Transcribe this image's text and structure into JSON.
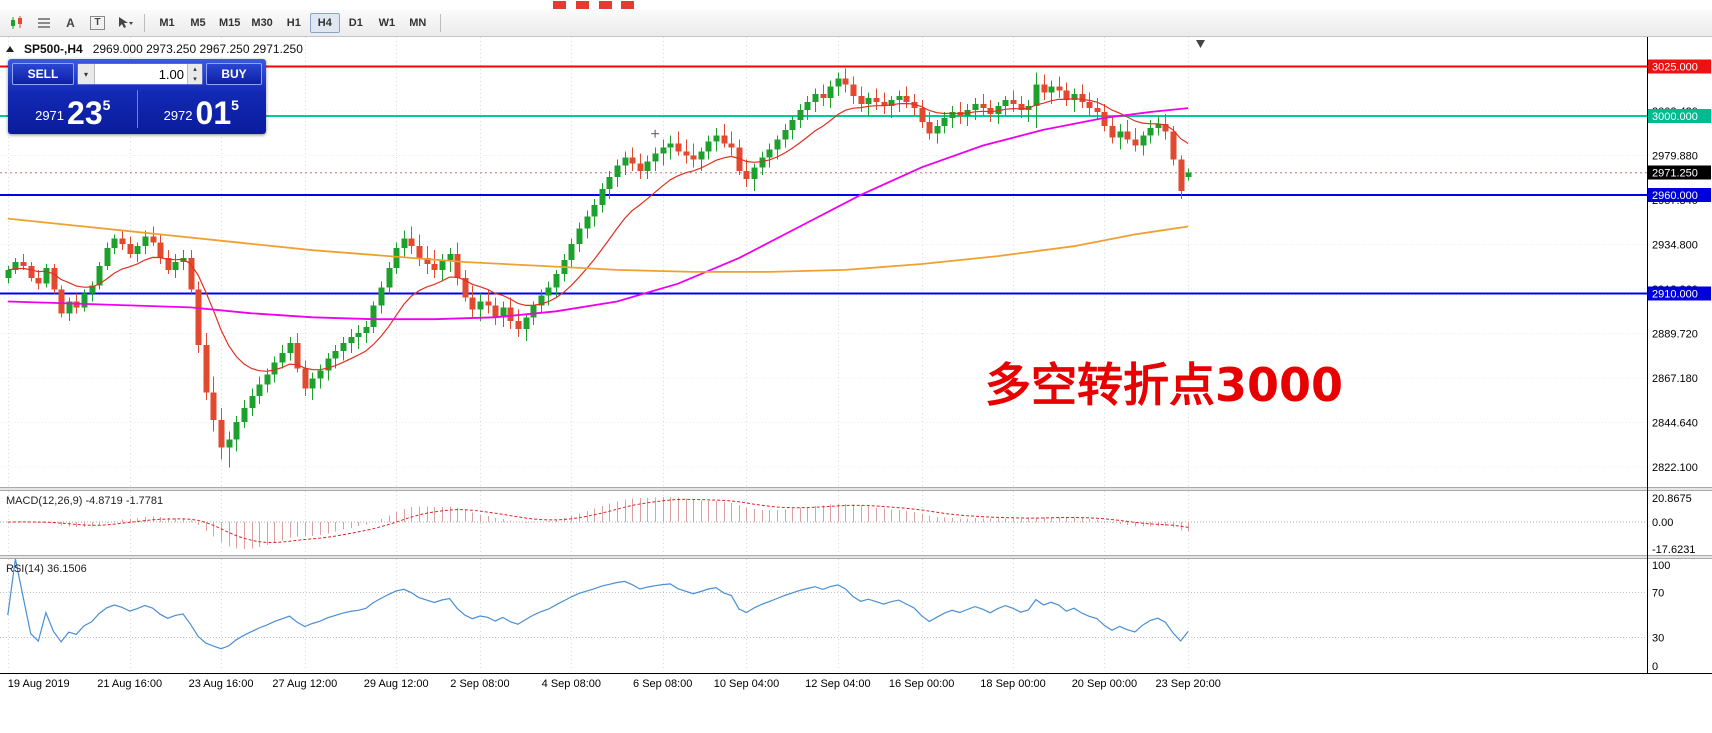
{
  "window": {
    "header_symbol": "SP500-,H4",
    "header_ohlc": "2969.000 2973.250 2967.250 2971.250"
  },
  "toolbar": {
    "icon_a": "A",
    "icon_t": "T",
    "timeframes": [
      {
        "label": "M1",
        "active": false
      },
      {
        "label": "M5",
        "active": false
      },
      {
        "label": "M15",
        "active": false
      },
      {
        "label": "M30",
        "active": false
      },
      {
        "label": "H1",
        "active": false
      },
      {
        "label": "H4",
        "active": true
      },
      {
        "label": "D1",
        "active": false
      },
      {
        "label": "W1",
        "active": false
      },
      {
        "label": "MN",
        "active": false
      }
    ]
  },
  "trade_panel": {
    "sell_label": "SELL",
    "buy_label": "BUY",
    "volume": "1.00",
    "bid_small": "2971",
    "bid_big": "23",
    "bid_sup": "5",
    "ask_small": "2972",
    "ask_big": "01",
    "ask_sup": "5"
  },
  "annotation": {
    "text": "多空转折点3000"
  },
  "chart_data": {
    "type": "candlestick",
    "symbol": "SP500-",
    "timeframe": "H4",
    "last_bar": {
      "open": 2969.0,
      "high": 2973.25,
      "low": 2967.25,
      "close": 2971.25
    },
    "y_axis": {
      "p_min": 2812,
      "p_max": 3040,
      "grid_start": 2822.1,
      "grid_step": 22.54
    },
    "hlines": [
      {
        "price": 3025.0,
        "color": "#ff0000",
        "label": "3025.000",
        "label_bg": "#ee1111"
      },
      {
        "price": 3000.0,
        "color": "#00cc99",
        "label": "3000.000",
        "label_bg": "#00bb90"
      },
      {
        "price": 2960.0,
        "color": "#0000ee",
        "label": "2960.000",
        "label_bg": "#0000dd"
      },
      {
        "price": 2910.0,
        "color": "#0000ee",
        "label": "2910.000",
        "label_bg": "#0000dd"
      }
    ],
    "current_price": {
      "price": 2971.25,
      "label": "2971.250"
    },
    "colors": {
      "up": "#1ca12c",
      "down": "#e2492f",
      "ma_fast": "#e03020",
      "ma_mid": "#ee00ee",
      "ma_slow": "#f0a030",
      "macd_hist": "#dca0a0",
      "macd_signal": "#dd2222",
      "rsi": "#4a8fd4"
    },
    "x_labels": [
      [
        0,
        "19 Aug 2019"
      ],
      [
        16,
        "21 Aug 16:00"
      ],
      [
        28,
        "23 Aug 16:00"
      ],
      [
        39,
        "27 Aug 12:00"
      ],
      [
        51,
        "29 Aug 12:00"
      ],
      [
        62,
        "2 Sep 08:00"
      ],
      [
        74,
        "4 Sep 08:00"
      ],
      [
        86,
        "6 Sep 08:00"
      ],
      [
        97,
        "10 Sep 04:00"
      ],
      [
        109,
        "12 Sep 04:00"
      ],
      [
        120,
        "16 Sep 00:00"
      ],
      [
        132,
        "18 Sep 00:00"
      ],
      [
        144,
        "20 Sep 00:00"
      ],
      [
        155,
        "23 Sep 20:00"
      ]
    ],
    "ma_fast_period": 13,
    "ma_mid_points": [
      [
        0,
        2906
      ],
      [
        8,
        2905
      ],
      [
        16,
        2904
      ],
      [
        24,
        2903
      ],
      [
        32,
        2900
      ],
      [
        40,
        2898
      ],
      [
        48,
        2897
      ],
      [
        56,
        2897
      ],
      [
        64,
        2898
      ],
      [
        72,
        2901
      ],
      [
        80,
        2906
      ],
      [
        88,
        2915
      ],
      [
        96,
        2928
      ],
      [
        104,
        2944
      ],
      [
        112,
        2960
      ],
      [
        120,
        2974
      ],
      [
        128,
        2985
      ],
      [
        136,
        2993
      ],
      [
        144,
        2999
      ],
      [
        150,
        3002
      ],
      [
        155,
        3004
      ]
    ],
    "ma_slow_points": [
      [
        0,
        2948
      ],
      [
        10,
        2944
      ],
      [
        20,
        2940
      ],
      [
        30,
        2936
      ],
      [
        40,
        2932
      ],
      [
        50,
        2929
      ],
      [
        60,
        2926
      ],
      [
        70,
        2924
      ],
      [
        80,
        2922
      ],
      [
        90,
        2921
      ],
      [
        100,
        2921
      ],
      [
        110,
        2922
      ],
      [
        120,
        2925
      ],
      [
        130,
        2929
      ],
      [
        140,
        2934
      ],
      [
        148,
        2940
      ],
      [
        155,
        2944
      ]
    ],
    "macd": {
      "label": "MACD(12,26,9)",
      "value": "-4.8719",
      "signal_value": "-1.7781",
      "axis_max": "20.8675",
      "axis_zero": "0.00",
      "axis_min": "-17.6231",
      "fast": 12,
      "slow": 26,
      "signal": 9
    },
    "rsi": {
      "label": "RSI(14)",
      "value": "36.1506",
      "period": 14,
      "levels": [
        70,
        30
      ],
      "axis_top": "100",
      "axis_bottom": "0"
    },
    "ohlc": [
      [
        2918,
        2924,
        2915,
        2922
      ],
      [
        2922,
        2928,
        2920,
        2926
      ],
      [
        2926,
        2930,
        2922,
        2924
      ],
      [
        2924,
        2926,
        2916,
        2918
      ],
      [
        2918,
        2922,
        2912,
        2915
      ],
      [
        2915,
        2925,
        2913,
        2923
      ],
      [
        2923,
        2925,
        2910,
        2912
      ],
      [
        2912,
        2914,
        2898,
        2900
      ],
      [
        2900,
        2908,
        2896,
        2906
      ],
      [
        2906,
        2910,
        2900,
        2903
      ],
      [
        2903,
        2912,
        2901,
        2910
      ],
      [
        2910,
        2916,
        2906,
        2914
      ],
      [
        2914,
        2926,
        2912,
        2924
      ],
      [
        2924,
        2936,
        2922,
        2933
      ],
      [
        2933,
        2940,
        2930,
        2938
      ],
      [
        2938,
        2942,
        2932,
        2935
      ],
      [
        2935,
        2939,
        2928,
        2930
      ],
      [
        2930,
        2936,
        2926,
        2934
      ],
      [
        2934,
        2942,
        2930,
        2939
      ],
      [
        2939,
        2944,
        2934,
        2936
      ],
      [
        2936,
        2940,
        2925,
        2928
      ],
      [
        2928,
        2932,
        2920,
        2922
      ],
      [
        2922,
        2930,
        2918,
        2926
      ],
      [
        2926,
        2932,
        2922,
        2928
      ],
      [
        2928,
        2932,
        2910,
        2912
      ],
      [
        2912,
        2916,
        2880,
        2884
      ],
      [
        2884,
        2890,
        2856,
        2860
      ],
      [
        2860,
        2868,
        2840,
        2846
      ],
      [
        2846,
        2852,
        2826,
        2832
      ],
      [
        2832,
        2840,
        2822,
        2836
      ],
      [
        2836,
        2848,
        2830,
        2845
      ],
      [
        2845,
        2856,
        2842,
        2852
      ],
      [
        2852,
        2862,
        2848,
        2858
      ],
      [
        2858,
        2868,
        2854,
        2864
      ],
      [
        2864,
        2872,
        2860,
        2869
      ],
      [
        2869,
        2878,
        2865,
        2875
      ],
      [
        2875,
        2884,
        2872,
        2880
      ],
      [
        2880,
        2888,
        2876,
        2885
      ],
      [
        2885,
        2890,
        2870,
        2872
      ],
      [
        2872,
        2876,
        2858,
        2862
      ],
      [
        2862,
        2870,
        2856,
        2867
      ],
      [
        2867,
        2874,
        2862,
        2871
      ],
      [
        2871,
        2880,
        2866,
        2877
      ],
      [
        2877,
        2884,
        2872,
        2881
      ],
      [
        2881,
        2888,
        2876,
        2885
      ],
      [
        2885,
        2892,
        2880,
        2888
      ],
      [
        2888,
        2894,
        2882,
        2890
      ],
      [
        2890,
        2896,
        2885,
        2893
      ],
      [
        2893,
        2906,
        2890,
        2904
      ],
      [
        2904,
        2916,
        2900,
        2913
      ],
      [
        2913,
        2926,
        2910,
        2923
      ],
      [
        2923,
        2936,
        2920,
        2933
      ],
      [
        2933,
        2942,
        2928,
        2938
      ],
      [
        2938,
        2944,
        2930,
        2934
      ],
      [
        2934,
        2940,
        2924,
        2928
      ],
      [
        2928,
        2934,
        2920,
        2925
      ],
      [
        2925,
        2932,
        2918,
        2922
      ],
      [
        2922,
        2930,
        2916,
        2927
      ],
      [
        2927,
        2933,
        2921,
        2930
      ],
      [
        2930,
        2936,
        2914,
        2918
      ],
      [
        2918,
        2922,
        2906,
        2908
      ],
      [
        2908,
        2914,
        2898,
        2902
      ],
      [
        2902,
        2910,
        2896,
        2906
      ],
      [
        2906,
        2912,
        2900,
        2904
      ],
      [
        2904,
        2908,
        2894,
        2898
      ],
      [
        2898,
        2906,
        2893,
        2903
      ],
      [
        2903,
        2908,
        2892,
        2896
      ],
      [
        2896,
        2902,
        2888,
        2892
      ],
      [
        2892,
        2900,
        2886,
        2898
      ],
      [
        2898,
        2906,
        2894,
        2904
      ],
      [
        2904,
        2912,
        2900,
        2909
      ],
      [
        2909,
        2916,
        2904,
        2913
      ],
      [
        2913,
        2922,
        2908,
        2920
      ],
      [
        2920,
        2930,
        2916,
        2927
      ],
      [
        2927,
        2938,
        2923,
        2935
      ],
      [
        2935,
        2946,
        2931,
        2943
      ],
      [
        2943,
        2952,
        2938,
        2949
      ],
      [
        2949,
        2958,
        2944,
        2955
      ],
      [
        2955,
        2966,
        2951,
        2963
      ],
      [
        2963,
        2972,
        2958,
        2969
      ],
      [
        2969,
        2978,
        2964,
        2975
      ],
      [
        2975,
        2982,
        2970,
        2979
      ],
      [
        2979,
        2984,
        2972,
        2976
      ],
      [
        2976,
        2981,
        2968,
        2972
      ],
      [
        2972,
        2980,
        2968,
        2977
      ],
      [
        2977,
        2984,
        2972,
        2981
      ],
      [
        2981,
        2988,
        2975,
        2984
      ],
      [
        2984,
        2990,
        2978,
        2986
      ],
      [
        2986,
        2992,
        2980,
        2982
      ],
      [
        2982,
        2988,
        2976,
        2980
      ],
      [
        2980,
        2986,
        2974,
        2978
      ],
      [
        2978,
        2984,
        2972,
        2982
      ],
      [
        2982,
        2990,
        2978,
        2987
      ],
      [
        2987,
        2994,
        2982,
        2990
      ],
      [
        2990,
        2996,
        2984,
        2986
      ],
      [
        2986,
        2992,
        2980,
        2984
      ],
      [
        2984,
        2988,
        2970,
        2972
      ],
      [
        2972,
        2978,
        2964,
        2968
      ],
      [
        2968,
        2976,
        2962,
        2974
      ],
      [
        2974,
        2982,
        2970,
        2979
      ],
      [
        2979,
        2986,
        2974,
        2983
      ],
      [
        2983,
        2990,
        2978,
        2988
      ],
      [
        2988,
        2996,
        2984,
        2993
      ],
      [
        2993,
        3000,
        2988,
        2998
      ],
      [
        2998,
        3006,
        2994,
        3003
      ],
      [
        3003,
        3010,
        2998,
        3007
      ],
      [
        3007,
        3014,
        3002,
        3011
      ],
      [
        3011,
        3016,
        3005,
        3009
      ],
      [
        3009,
        3018,
        3004,
        3015
      ],
      [
        3015,
        3022,
        3010,
        3019
      ],
      [
        3019,
        3024,
        3012,
        3016
      ],
      [
        3016,
        3020,
        3006,
        3010
      ],
      [
        3010,
        3015,
        3002,
        3006
      ],
      [
        3006,
        3012,
        3000,
        3009
      ],
      [
        3009,
        3014,
        3003,
        3007
      ],
      [
        3007,
        3012,
        3001,
        3005
      ],
      [
        3005,
        3010,
        2999,
        3008
      ],
      [
        3008,
        3013,
        3002,
        3010
      ],
      [
        3010,
        3015,
        3004,
        3007
      ],
      [
        3007,
        3011,
        3000,
        3004
      ],
      [
        3004,
        3008,
        2994,
        2997
      ],
      [
        2997,
        3002,
        2988,
        2991
      ],
      [
        2991,
        2998,
        2986,
        2995
      ],
      [
        2995,
        3002,
        2991,
        2999
      ],
      [
        2999,
        3005,
        2994,
        3002
      ],
      [
        3002,
        3007,
        2996,
        3000
      ],
      [
        3000,
        3006,
        2995,
        3003
      ],
      [
        3003,
        3009,
        2998,
        3006
      ],
      [
        3006,
        3011,
        3000,
        3004
      ],
      [
        3004,
        3008,
        2997,
        3001
      ],
      [
        3001,
        3007,
        2996,
        3005
      ],
      [
        3005,
        3010,
        3000,
        3008
      ],
      [
        3008,
        3013,
        3002,
        3006
      ],
      [
        3006,
        3010,
        2999,
        3003
      ],
      [
        3003,
        3008,
        2997,
        3005
      ],
      [
        3005,
        3022,
        2994,
        3016
      ],
      [
        3016,
        3021,
        3008,
        3012
      ],
      [
        3012,
        3018,
        3006,
        3015
      ],
      [
        3015,
        3020,
        3009,
        3013
      ],
      [
        3013,
        3017,
        3005,
        3008
      ],
      [
        3008,
        3014,
        3002,
        3011
      ],
      [
        3011,
        3016,
        3004,
        3007
      ],
      [
        3007,
        3012,
        3000,
        3004
      ],
      [
        3004,
        3009,
        2998,
        3002
      ],
      [
        3002,
        3006,
        2992,
        2995
      ],
      [
        2995,
        3000,
        2986,
        2989
      ],
      [
        2989,
        2996,
        2983,
        2992
      ],
      [
        2992,
        2998,
        2986,
        2988
      ],
      [
        2988,
        2994,
        2982,
        2985
      ],
      [
        2985,
        2992,
        2980,
        2990
      ],
      [
        2990,
        2998,
        2986,
        2994
      ],
      [
        2994,
        3000,
        2990,
        2996
      ],
      [
        2996,
        3001,
        2988,
        2992
      ],
      [
        2992,
        2995,
        2975,
        2978
      ],
      [
        2978,
        2980,
        2958,
        2962
      ],
      [
        2969,
        2973.25,
        2967.25,
        2971.25
      ]
    ]
  }
}
